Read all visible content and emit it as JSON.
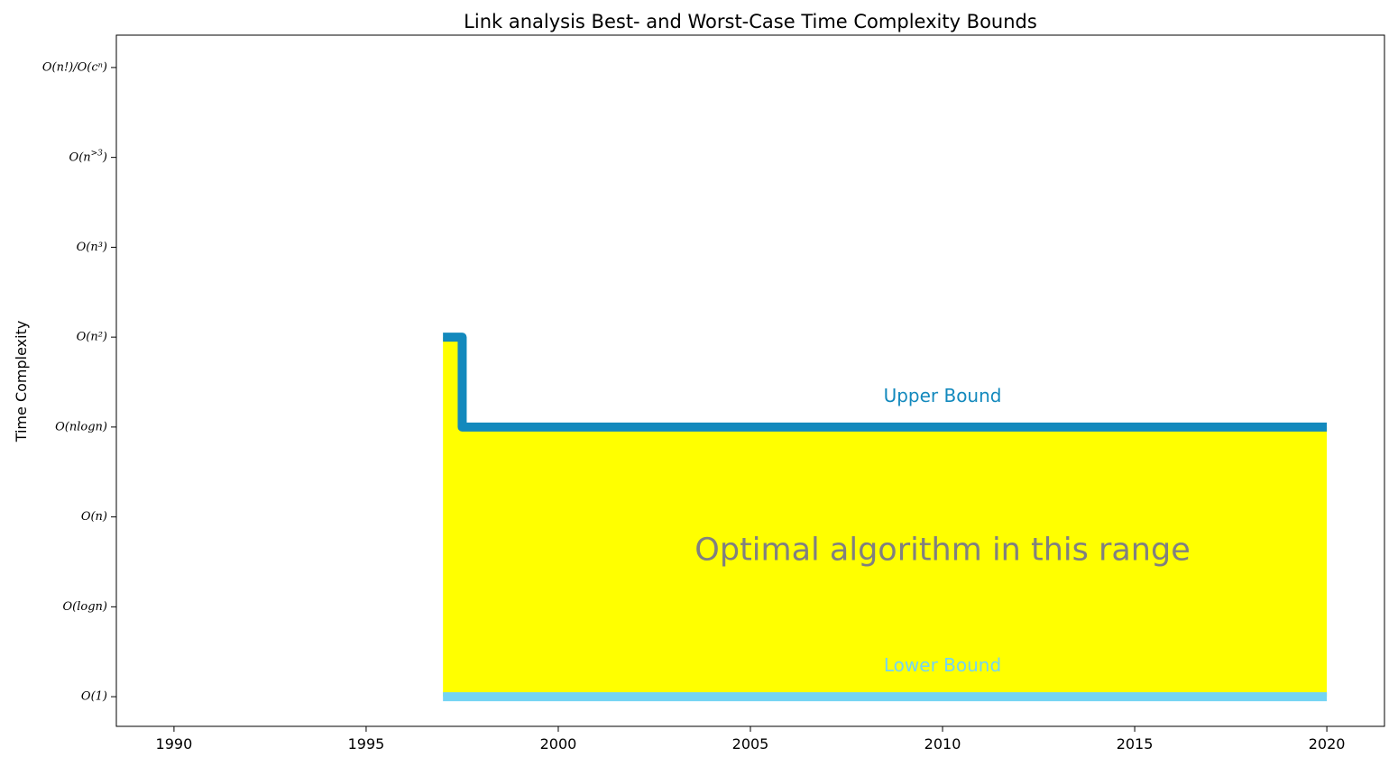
{
  "chart_data": {
    "type": "line",
    "title": "Link analysis Best- and Worst-Case Time Complexity Bounds",
    "xlabel": "",
    "ylabel": "Time Complexity",
    "xlim": [
      1988.5,
      2021.5
    ],
    "ylim": [
      -0.33,
      7.36
    ],
    "xticks": [
      1990,
      1995,
      2000,
      2005,
      2010,
      2015,
      2020
    ],
    "yticks": [
      {
        "value": 0,
        "label": "O(1)"
      },
      {
        "value": 1,
        "label": "O(logn)"
      },
      {
        "value": 2,
        "label": "O(n)"
      },
      {
        "value": 3,
        "label": "O(nlogn)"
      },
      {
        "value": 4,
        "label": "O(n²)"
      },
      {
        "value": 5,
        "label": "O(n³)"
      },
      {
        "value": 6,
        "label": "O(n>3)"
      },
      {
        "value": 7,
        "label": "O(n!)/O(cⁿ)"
      }
    ],
    "grid": false,
    "legend": "none",
    "series": [
      {
        "name": "Upper Bound",
        "color": "#1389bd",
        "step": "post",
        "x": [
          1997,
          1997.5,
          2020
        ],
        "y": [
          4,
          3,
          3
        ]
      },
      {
        "name": "Lower Bound",
        "color": "#74d4f4",
        "step": "post",
        "x": [
          1997,
          2020
        ],
        "y": [
          0,
          0
        ]
      }
    ],
    "fill": {
      "color": "#ffff00",
      "between": [
        "Lower Bound",
        "Upper Bound"
      ]
    },
    "annotations": [
      {
        "text": "Upper Bound",
        "x": 2010,
        "y": 3.28,
        "color": "#1389bd"
      },
      {
        "text": "Lower Bound",
        "x": 2010,
        "y": 0.28,
        "color": "#74d4f4"
      },
      {
        "text": "Optimal algorithm in this range",
        "x": 2010,
        "y": 1.62,
        "color": "#808080"
      }
    ]
  }
}
